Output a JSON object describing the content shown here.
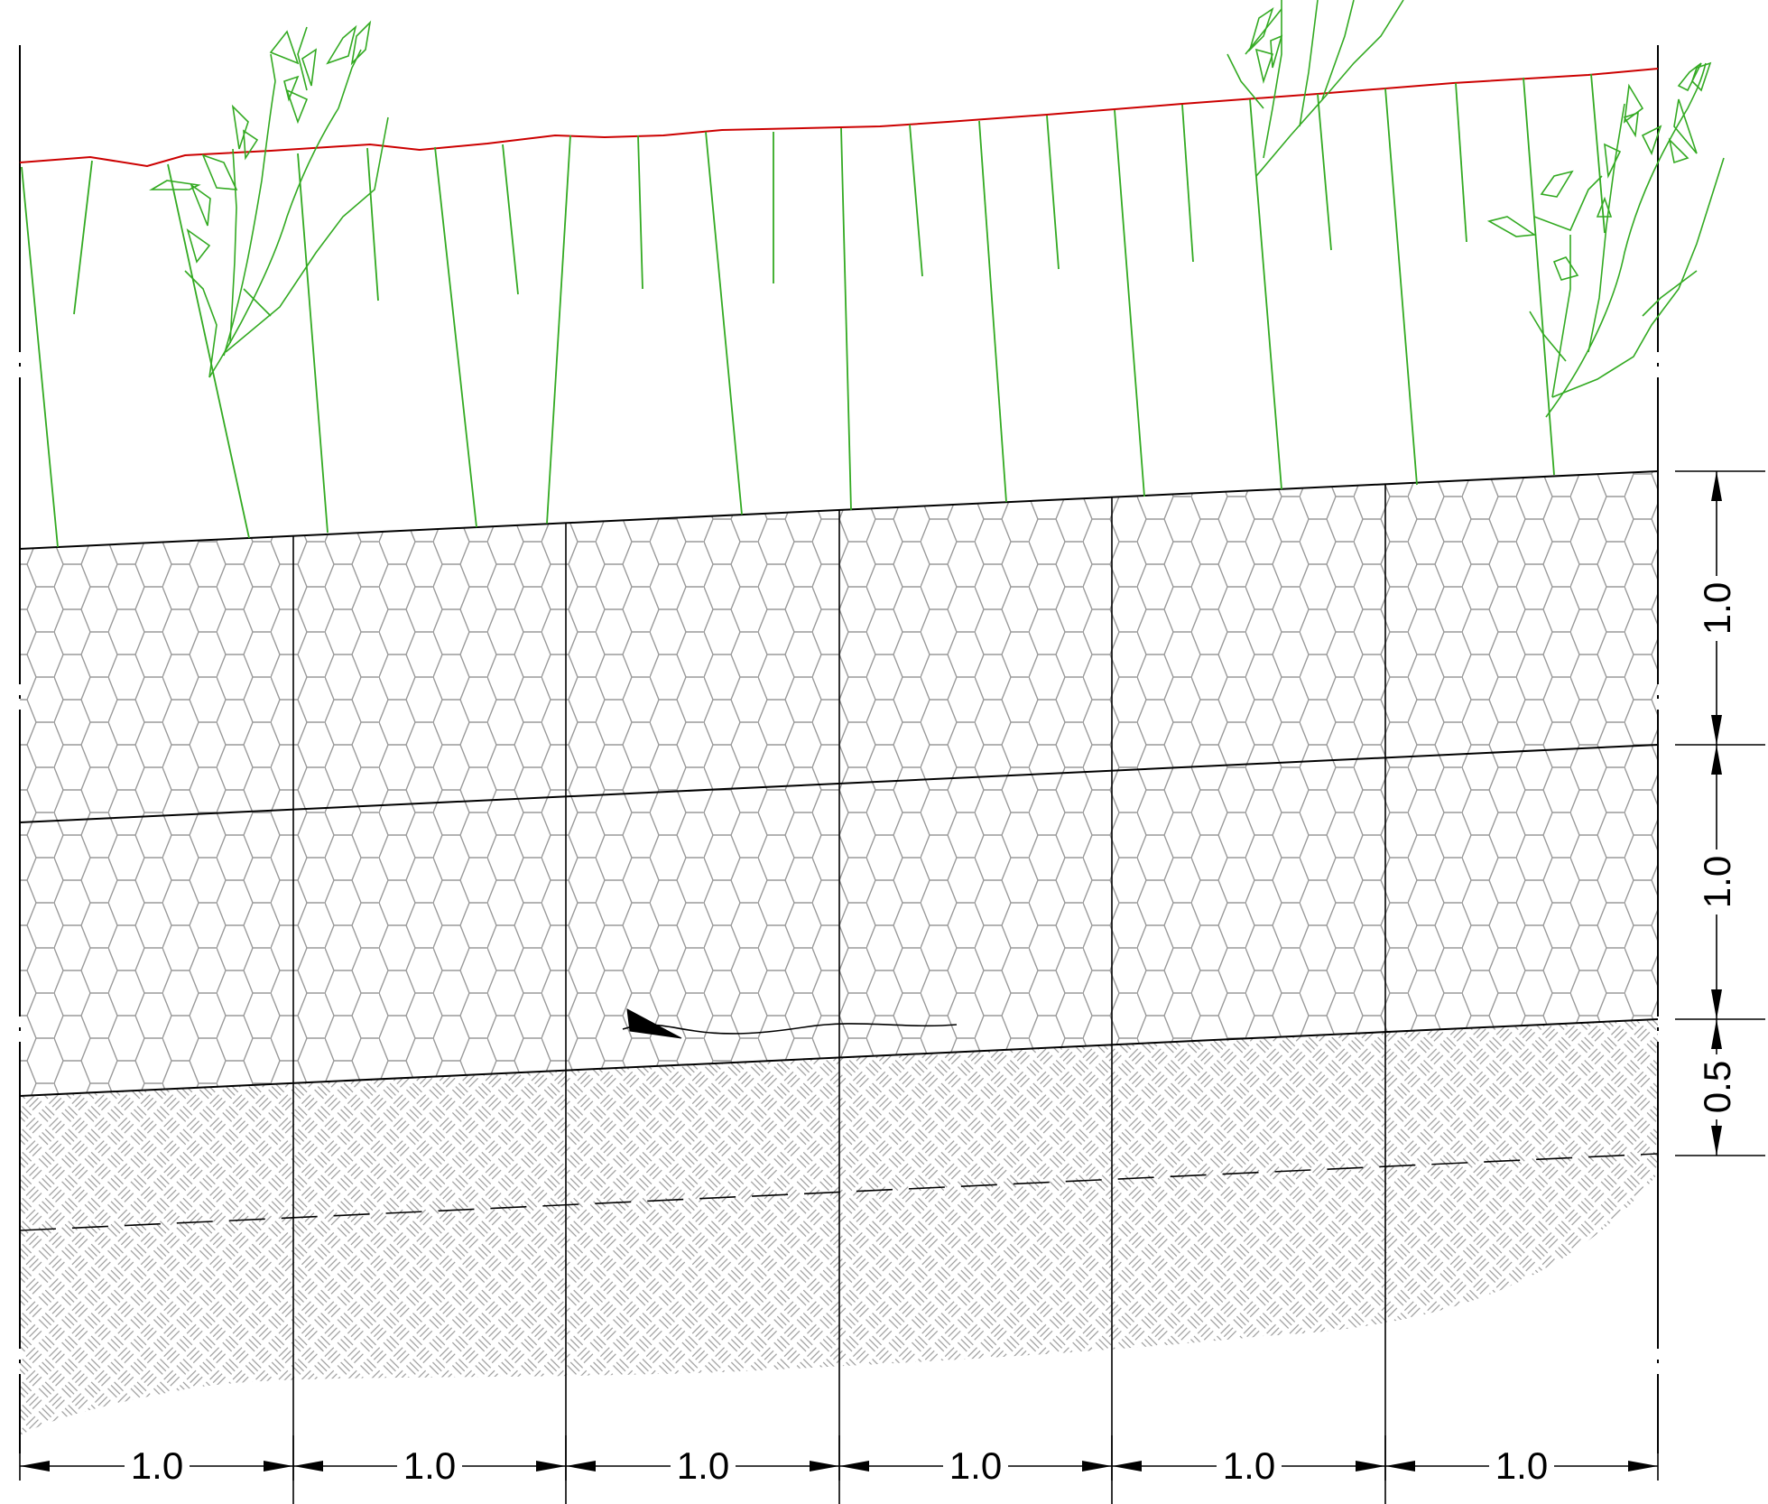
{
  "drawing": {
    "horizontal_dimensions": [
      "1.0",
      "1.0",
      "1.0",
      "1.0",
      "1.0",
      "1.0"
    ],
    "vertical_dimensions": [
      "1.0",
      "1.0",
      "0.5"
    ],
    "colors": {
      "ground_surface": "#cc0000",
      "vegetation": "#33aa22",
      "hatch": "#9a9a9a",
      "linework": "#000000",
      "background": "#ffffff"
    },
    "layers": [
      {
        "pattern": "hexagon"
      },
      {
        "pattern": "hexagon"
      },
      {
        "pattern": "basketweave"
      }
    ],
    "icons": [
      "flow-arrow-icon"
    ]
  }
}
